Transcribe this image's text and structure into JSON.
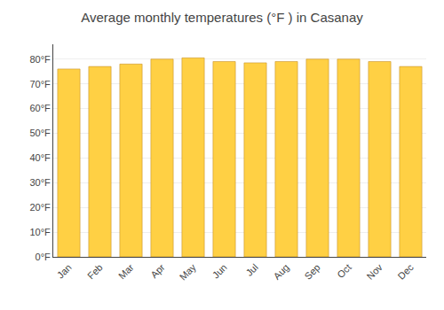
{
  "chart_data": {
    "type": "bar",
    "title": "Average monthly temperatures (°F ) in Casanay",
    "categories": [
      "Jan",
      "Feb",
      "Mar",
      "Apr",
      "May",
      "Jun",
      "Jul",
      "Aug",
      "Sep",
      "Oct",
      "Nov",
      "Dec"
    ],
    "values": [
      76,
      77,
      78,
      80,
      80.5,
      79,
      78.5,
      79,
      80,
      80,
      79,
      77
    ],
    "color": "#FFD044",
    "ylim": [
      0,
      86
    ],
    "yticks": [
      {
        "value": 0,
        "label": "0°F"
      },
      {
        "value": 10,
        "label": "10°F"
      },
      {
        "value": 20,
        "label": "20°F"
      },
      {
        "value": 30,
        "label": "30°F"
      },
      {
        "value": 40,
        "label": "40°F"
      },
      {
        "value": 50,
        "label": "50°F"
      },
      {
        "value": 60,
        "label": "60°F"
      },
      {
        "value": 70,
        "label": "70°F"
      },
      {
        "value": 80,
        "label": "80°F"
      }
    ],
    "grid": true
  }
}
